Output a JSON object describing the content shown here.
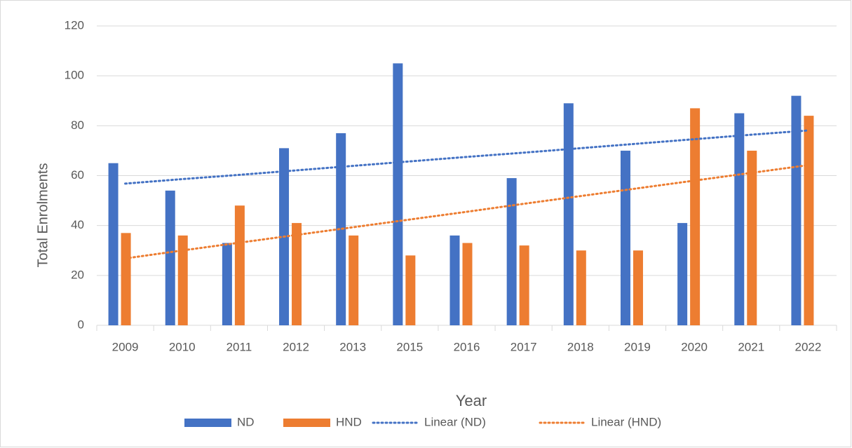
{
  "chart_data": {
    "type": "bar",
    "categories": [
      "2009",
      "2010",
      "2011",
      "2012",
      "2013",
      "2015",
      "2016",
      "2017",
      "2018",
      "2019",
      "2020",
      "2021",
      "2022"
    ],
    "series": [
      {
        "name": "ND",
        "color": "#4472c4",
        "values": [
          65,
          54,
          33,
          71,
          77,
          105,
          36,
          59,
          89,
          70,
          41,
          85,
          92
        ]
      },
      {
        "name": "HND",
        "color": "#ed7d31",
        "values": [
          37,
          36,
          48,
          41,
          36,
          28,
          33,
          32,
          30,
          30,
          87,
          70,
          84
        ]
      },
      {
        "name": "Linear (ND)",
        "type": "trendline",
        "color": "#4472c4",
        "values": [
          56.8,
          58.6,
          60.3,
          62.1,
          63.9,
          65.7,
          67.5,
          69.2,
          71.0,
          72.8,
          74.6,
          76.4,
          78.1
        ]
      },
      {
        "name": "Linear (HND)",
        "type": "trendline",
        "color": "#ed7d31",
        "values": [
          26.8,
          30.0,
          33.1,
          36.2,
          39.3,
          42.4,
          45.5,
          48.7,
          51.8,
          54.9,
          58.0,
          61.1,
          64.2
        ]
      }
    ],
    "x_label": "Year",
    "y_label": "Total Enrolments",
    "ylim": [
      0,
      120
    ],
    "yticks": [
      0,
      20,
      40,
      60,
      80,
      100,
      120
    ],
    "grid": true,
    "legend": "bottom"
  }
}
